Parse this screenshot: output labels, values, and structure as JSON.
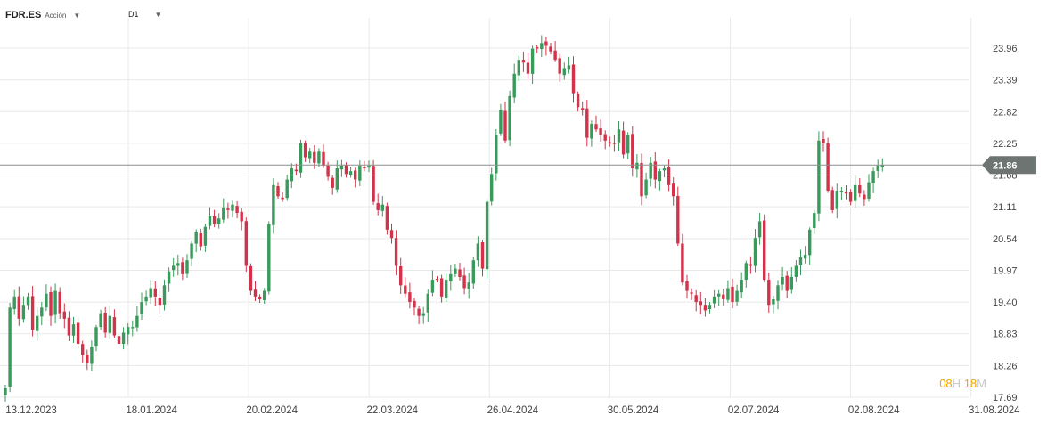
{
  "toolbar": {
    "symbol": "FDR.ES",
    "instrument_type": "Acción",
    "timeframe": "D1",
    "dropdown_icon": "caret-down-icon"
  },
  "countdown": {
    "hours": "08",
    "hours_unit": "H",
    "minutes": "18",
    "minutes_unit": "M"
  },
  "colors": {
    "up": "#3a9a5b",
    "down": "#d2334a",
    "grid": "#e9e9e9",
    "price_line": "#8a8f8d",
    "price_label_bg": "#6e7471"
  },
  "chart_data": {
    "type": "candlestick",
    "title": "",
    "xlabel": "",
    "ylabel": "",
    "ylim": [
      17.69,
      24.28
    ],
    "yticks": [
      "23.96",
      "23.39",
      "22.82",
      "22.25",
      "21.68",
      "21.11",
      "20.54",
      "19.97",
      "19.40",
      "18.83",
      "18.26",
      "17.69"
    ],
    "xticks": [
      "13.12.2023",
      "18.01.2024",
      "20.02.2024",
      "22.03.2024",
      "26.04.2024",
      "30.05.2024",
      "02.07.2024",
      "02.08.2024",
      "31.08.2024"
    ],
    "current_price": 21.86,
    "current_price_label": "21.86",
    "grid": true,
    "closes": [
      17.85,
      19.3,
      19.5,
      19.1,
      19.35,
      19.5,
      18.9,
      19.15,
      19.3,
      19.55,
      19.15,
      19.6,
      19.2,
      19.1,
      18.8,
      19.0,
      18.65,
      18.45,
      18.3,
      18.6,
      18.95,
      19.2,
      18.85,
      19.15,
      18.8,
      18.65,
      18.85,
      18.95,
      18.95,
      19.15,
      19.4,
      19.5,
      19.65,
      19.5,
      19.35,
      19.7,
      19.95,
      20.05,
      20.1,
      19.9,
      20.15,
      20.45,
      20.65,
      20.4,
      20.75,
      20.95,
      20.8,
      20.9,
      21.1,
      21.05,
      21.15,
      21.0,
      20.85,
      20.05,
      19.6,
      19.5,
      19.45,
      19.6,
      20.8,
      21.5,
      21.3,
      21.25,
      21.6,
      21.8,
      21.75,
      22.25,
      22.0,
      22.1,
      21.9,
      22.1,
      21.85,
      21.65,
      21.45,
      21.8,
      21.85,
      21.7,
      21.75,
      21.6,
      21.85,
      21.8,
      21.85,
      21.2,
      21.05,
      21.15,
      20.7,
      20.55,
      20.05,
      19.7,
      19.55,
      19.4,
      19.3,
      19.15,
      19.2,
      19.55,
      19.8,
      19.8,
      19.5,
      19.8,
      19.9,
      20.0,
      19.85,
      19.65,
      19.75,
      20.15,
      20.45,
      20.0,
      21.2,
      21.7,
      22.4,
      22.85,
      22.3,
      23.1,
      23.5,
      23.75,
      23.7,
      23.5,
      23.95,
      23.95,
      24.05,
      24.0,
      23.9,
      23.75,
      23.5,
      23.6,
      23.65,
      23.15,
      22.9,
      22.85,
      22.35,
      22.6,
      22.5,
      22.4,
      22.3,
      22.25,
      22.25,
      22.5,
      22.05,
      22.4,
      21.8,
      21.9,
      21.3,
      21.6,
      21.9,
      21.6,
      21.75,
      21.8,
      21.5,
      21.3,
      20.45,
      19.75,
      19.6,
      19.55,
      19.4,
      19.35,
      19.25,
      19.35,
      19.5,
      19.55,
      19.45,
      19.65,
      19.4,
      19.6,
      19.8,
      20.1,
      20.05,
      20.55,
      20.85,
      19.8,
      19.35,
      19.45,
      19.7,
      19.85,
      19.6,
      19.85,
      20.05,
      20.2,
      20.25,
      20.7,
      21.0,
      22.3,
      22.25,
      21.4,
      21.05,
      21.4,
      21.4,
      21.35,
      21.2,
      21.5,
      21.35,
      21.25,
      21.55,
      21.75,
      21.85,
      21.86
    ],
    "series": [
      {
        "values": []
      }
    ]
  }
}
